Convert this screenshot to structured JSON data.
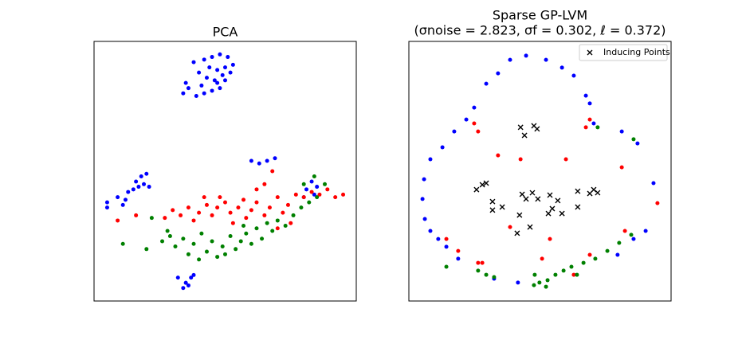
{
  "chart_data": [
    {
      "type": "scatter",
      "title": "PCA",
      "xlim": [
        0,
        100
      ],
      "ylim": [
        0,
        100
      ],
      "series": [
        {
          "color": "#0000ff",
          "marker": "o",
          "x": [
            38,
            42,
            45,
            48,
            51,
            44,
            47,
            50,
            53,
            40,
            43,
            46,
            49,
            52,
            41,
            45,
            48,
            35,
            36,
            34,
            39,
            42,
            47,
            50,
            5,
            5,
            9,
            13,
            16,
            18,
            20,
            17,
            15,
            19,
            12,
            11,
            21,
            32,
            35,
            37,
            38,
            34,
            36,
            60,
            63,
            66,
            69,
            81,
            83,
            85,
            80,
            84
          ],
          "y": [
            92,
            93,
            94,
            95,
            94,
            90,
            89,
            90,
            91,
            88,
            86,
            85,
            87,
            88,
            83,
            81,
            82,
            84,
            82,
            80,
            79,
            80,
            84,
            85,
            38,
            36,
            40,
            42,
            46,
            48,
            49,
            44,
            43,
            45,
            39,
            37,
            44,
            9,
            7,
            9,
            10,
            5,
            6,
            54,
            53,
            54,
            55,
            43,
            46,
            44,
            40,
            41
          ]
        },
        {
          "color": "#ff0000",
          "marker": "o",
          "x": [
            27,
            30,
            33,
            36,
            38,
            40,
            43,
            45,
            47,
            50,
            52,
            55,
            57,
            60,
            62,
            65,
            67,
            70,
            72,
            74,
            77,
            80,
            83,
            86,
            89,
            92,
            95,
            9,
            16,
            42,
            48,
            53,
            58,
            70,
            75,
            62,
            65,
            68
          ],
          "y": [
            32,
            35,
            33,
            36,
            31,
            34,
            37,
            33,
            36,
            38,
            34,
            36,
            39,
            35,
            38,
            33,
            36,
            40,
            34,
            37,
            41,
            40,
            42,
            41,
            43,
            40,
            41,
            31,
            33,
            40,
            40,
            30,
            32,
            28,
            30,
            43,
            45,
            50
          ]
        },
        {
          "color": "#008000",
          "marker": "o",
          "x": [
            11,
            20,
            26,
            29,
            31,
            34,
            36,
            38,
            41,
            43,
            45,
            47,
            49,
            52,
            54,
            56,
            58,
            60,
            62,
            64,
            66,
            68,
            70,
            73,
            76,
            79,
            82,
            85,
            88,
            80,
            28,
            40,
            50,
            57,
            22,
            84
          ],
          "y": [
            22,
            20,
            23,
            25,
            21,
            24,
            18,
            22,
            26,
            19,
            23,
            17,
            21,
            25,
            20,
            23,
            26,
            22,
            28,
            24,
            30,
            27,
            31,
            29,
            33,
            36,
            38,
            40,
            45,
            45,
            27,
            16,
            18,
            29,
            32,
            48
          ]
        }
      ]
    },
    {
      "type": "scatter",
      "title": "Sparse GP-LVM",
      "subtitle": "(σnoise = 2.823, σf = 0.302, ℓ = 0.372)",
      "xlim": [
        0,
        100
      ],
      "ylim": [
        0,
        100
      ],
      "legend": "upper right",
      "series": [
        {
          "color": "#0000ff",
          "marker": "o",
          "x": [
            38.6,
            44.7,
            52.3,
            58.4,
            62.9,
            67.5,
            69.0,
            70.5,
            29.5,
            34.0,
            24.9,
            21.9,
            17.3,
            12.8,
            8.2,
            5.8,
            5.2,
            6.1,
            8.2,
            11.2,
            14.3,
            18.8,
            32.5,
            41.6,
            81.2,
            87.2,
            93.3,
            90.3,
            85.7,
            79.6
          ],
          "y": [
            92.9,
            94.5,
            92.9,
            89.9,
            86.8,
            79.1,
            76.1,
            68.4,
            83.7,
            87.7,
            74.5,
            69.9,
            65.3,
            59.2,
            54.6,
            46.9,
            39.3,
            31.6,
            27.0,
            23.9,
            20.9,
            16.3,
            8.6,
            7.1,
            65.3,
            60.7,
            45.4,
            27.0,
            23.9,
            17.8
          ]
        },
        {
          "color": "#ff0000",
          "marker": "o",
          "x": [
            24.9,
            26.4,
            67.5,
            69.0,
            34.0,
            42.6,
            59.9,
            81.2,
            94.8,
            38.6,
            53.8,
            82.4,
            28.0,
            50.8,
            69.0,
            14.3,
            18.8,
            62.9,
            26.4
          ],
          "y": [
            68.4,
            65.3,
            66.9,
            69.9,
            56.1,
            54.6,
            54.6,
            51.5,
            37.7,
            28.5,
            23.9,
            27.0,
            14.7,
            16.3,
            17.8,
            23.9,
            19.3,
            10.1,
            14.7
          ]
        },
        {
          "color": "#008000",
          "marker": "o",
          "x": [
            26.4,
            29.5,
            32.5,
            48.0,
            49.8,
            52.9,
            55.9,
            59.0,
            62.0,
            66.6,
            71.1,
            75.7,
            80.2,
            84.8,
            52.3,
            47.7,
            72.0,
            85.7,
            14.3,
            64.1
          ],
          "y": [
            11.7,
            10.1,
            9.2,
            10.1,
            7.1,
            8.0,
            10.1,
            11.7,
            13.2,
            14.7,
            16.3,
            19.3,
            22.4,
            25.5,
            5.5,
            6.1,
            66.9,
            62.3,
            13.2,
            10.1
          ]
        },
        {
          "name": "Inducing Points",
          "color": "#000000",
          "marker": "x",
          "x": [
            42.6,
            44.1,
            47.7,
            48.9,
            25.8,
            28.0,
            29.5,
            31.9,
            35.6,
            31.9,
            43.2,
            44.7,
            47.1,
            49.2,
            53.8,
            54.7,
            56.8,
            58.4,
            53.2,
            42.2,
            46.2,
            41.3,
            64.4,
            64.4,
            69.0,
            70.5,
            72.0
          ],
          "y": [
            66.9,
            63.8,
            67.5,
            66.3,
            42.9,
            44.8,
            45.4,
            38.3,
            36.2,
            35.0,
            41.1,
            39.3,
            41.7,
            39.3,
            40.8,
            35.6,
            38.7,
            33.7,
            33.7,
            33.1,
            28.5,
            26.1,
            42.3,
            36.2,
            41.4,
            42.9,
            41.7
          ]
        }
      ]
    }
  ]
}
